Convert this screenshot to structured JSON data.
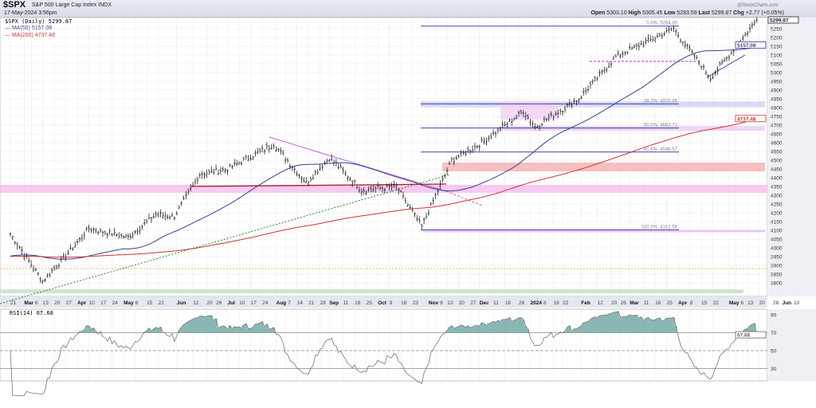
{
  "header": {
    "symbol": "$SPX",
    "name": "S&P 500 Large Cap Index  INDX",
    "date": "17-May-2024 3:56pm",
    "watermark": "@StockCharts.com",
    "open_label": "Open",
    "open": "5303.10",
    "high_label": "High",
    "high": "5305.45",
    "low_label": "Low",
    "low": "5283.59",
    "last_label": "Last",
    "last": "5299.87",
    "chg_label": "Chg",
    "chg": "+2.77 (+0.05%)"
  },
  "legend": {
    "price": "$SPX (Daily) 5299.87",
    "ma50": "MA(50) 5157.08",
    "ma200": "MA(200) 4737.48",
    "rsi": "RSI(14) 67.68"
  },
  "colors": {
    "price": "#222222",
    "ma50": "#3a3f8f",
    "ma200": "#cc3333",
    "rsi": "#777777",
    "rsi_fill": "#5a9a94",
    "fib": "#4a3fb0"
  },
  "chart_data": {
    "type": "line",
    "ylim": [
      3800,
      5300
    ],
    "yticks": [
      3800,
      3850,
      3900,
      3950,
      4000,
      4050,
      4100,
      4150,
      4200,
      4250,
      4300,
      4350,
      4400,
      4450,
      4500,
      4550,
      4600,
      4650,
      4700,
      4750,
      4800,
      4850,
      4900,
      4950,
      5000,
      5050,
      5100,
      5150,
      5200,
      5250
    ],
    "last_price_tag": "5299.87",
    "ma50_tag": "5157.08",
    "ma200_tag": "4737.48",
    "price_path": [
      [
        "2023-02-21",
        4080
      ],
      [
        "2023-03-13",
        3810
      ],
      [
        "2023-03-28",
        3970
      ],
      [
        "2023-04-10",
        4110
      ],
      [
        "2023-05-03",
        4060
      ],
      [
        "2023-05-19",
        4190
      ],
      [
        "2023-05-31",
        4180
      ],
      [
        "2023-06-15",
        4420
      ],
      [
        "2023-07-03",
        4450
      ],
      [
        "2023-07-31",
        4590
      ],
      [
        "2023-08-18",
        4370
      ],
      [
        "2023-09-01",
        4515
      ],
      [
        "2023-09-21",
        4330
      ],
      [
        "2023-10-12",
        4350
      ],
      [
        "2023-10-27",
        4120
      ],
      [
        "2023-11-15",
        4500
      ],
      [
        "2023-12-01",
        4590
      ],
      [
        "2023-12-28",
        4780
      ],
      [
        "2024-01-04",
        4690
      ],
      [
        "2024-01-31",
        4850
      ],
      [
        "2024-02-22",
        5090
      ],
      [
        "2024-03-28",
        5250
      ],
      [
        "2024-04-19",
        4970
      ],
      [
        "2024-05-03",
        5130
      ],
      [
        "2024-05-17",
        5300
      ]
    ],
    "fib_levels": [
      {
        "label": "0.0%: 5264.85",
        "value": 5264.85
      },
      {
        "label": "38.2%: 4820.86",
        "value": 4820.86
      },
      {
        "label": "50.0%: 4683.71",
        "value": 4683.71
      },
      {
        "label": "61.8%: 4546.57",
        "value": 4546.57
      },
      {
        "label": "100.0%: 4102.58",
        "value": 4102.58
      }
    ],
    "x_ticks": [
      [
        "2023-02-21",
        "21",
        0
      ],
      [
        "2023-03-01",
        "Mar",
        1
      ],
      [
        "2023-03-06",
        "6",
        0
      ],
      [
        "2023-03-13",
        "13",
        0
      ],
      [
        "2023-03-20",
        "20",
        0
      ],
      [
        "2023-03-27",
        "27",
        0
      ],
      [
        "2023-04-03",
        "Apr",
        1
      ],
      [
        "2023-04-10",
        "10",
        0
      ],
      [
        "2023-04-17",
        "17",
        0
      ],
      [
        "2023-04-24",
        "24",
        0
      ],
      [
        "2023-05-01",
        "May",
        1
      ],
      [
        "2023-05-08",
        "8",
        0
      ],
      [
        "2023-05-15",
        "15",
        0
      ],
      [
        "2023-05-22",
        "22",
        0
      ],
      [
        "2023-06-01",
        "Jun",
        1
      ],
      [
        "2023-06-12",
        "12",
        0
      ],
      [
        "2023-06-20",
        "20",
        0
      ],
      [
        "2023-06-26",
        "26",
        0
      ],
      [
        "2023-07-03",
        "Jul",
        1
      ],
      [
        "2023-07-10",
        "10",
        0
      ],
      [
        "2023-07-17",
        "17",
        0
      ],
      [
        "2023-07-24",
        "24",
        0
      ],
      [
        "2023-08-01",
        "Aug",
        1
      ],
      [
        "2023-08-07",
        "7",
        0
      ],
      [
        "2023-08-14",
        "14",
        0
      ],
      [
        "2023-08-21",
        "21",
        0
      ],
      [
        "2023-08-28",
        "28",
        0
      ],
      [
        "2023-09-01",
        "Sep",
        1
      ],
      [
        "2023-09-11",
        "11",
        0
      ],
      [
        "2023-09-18",
        "18",
        0
      ],
      [
        "2023-09-25",
        "25",
        0
      ],
      [
        "2023-10-02",
        "Oct",
        1
      ],
      [
        "2023-10-09",
        "9",
        0
      ],
      [
        "2023-10-16",
        "16",
        0
      ],
      [
        "2023-10-23",
        "23",
        0
      ],
      [
        "2023-11-01",
        "Nov",
        1
      ],
      [
        "2023-11-06",
        "6",
        0
      ],
      [
        "2023-11-13",
        "13",
        0
      ],
      [
        "2023-11-20",
        "20",
        0
      ],
      [
        "2023-11-27",
        "27",
        0
      ],
      [
        "2023-12-01",
        "Dec",
        1
      ],
      [
        "2023-12-11",
        "11",
        0
      ],
      [
        "2023-12-18",
        "18",
        0
      ],
      [
        "2023-12-26",
        "26",
        0
      ],
      [
        "2024-01-02",
        "2024",
        1
      ],
      [
        "2024-01-08",
        "8",
        0
      ],
      [
        "2024-01-16",
        "16",
        0
      ],
      [
        "2024-01-22",
        "22",
        0
      ],
      [
        "2024-02-01",
        "Feb",
        1
      ],
      [
        "2024-02-12",
        "12",
        0
      ],
      [
        "2024-02-20",
        "20",
        0
      ],
      [
        "2024-02-26",
        "26",
        0
      ],
      [
        "2024-03-01",
        "Mar",
        1
      ],
      [
        "2024-03-11",
        "11",
        0
      ],
      [
        "2024-03-18",
        "18",
        0
      ],
      [
        "2024-03-25",
        "25",
        0
      ],
      [
        "2024-04-01",
        "Apr",
        1
      ],
      [
        "2024-04-08",
        "8",
        0
      ],
      [
        "2024-04-15",
        "15",
        0
      ],
      [
        "2024-04-22",
        "22",
        0
      ],
      [
        "2024-05-01",
        "May",
        1
      ],
      [
        "2024-05-06",
        "6",
        0
      ],
      [
        "2024-05-13",
        "13",
        0
      ],
      [
        "2024-05-20",
        "20",
        0
      ],
      [
        "2024-05-28",
        "28",
        0
      ],
      [
        "2024-06-03",
        "Jun",
        1
      ],
      [
        "2024-06-10",
        "10",
        0
      ]
    ],
    "rsi": {
      "ylim": [
        0,
        100
      ],
      "yticks": [
        30,
        50,
        70,
        90
      ],
      "last": "67.68",
      "levels": [
        30,
        50,
        70
      ]
    }
  }
}
